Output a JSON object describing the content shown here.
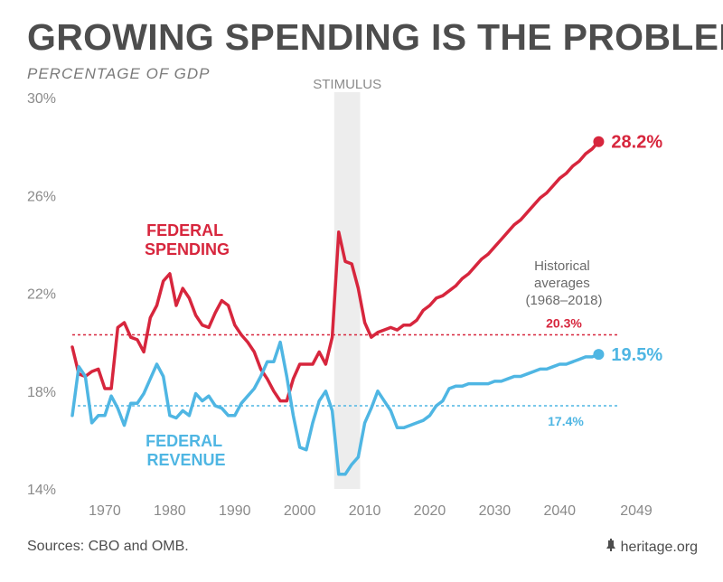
{
  "title": "GROWING SPENDING IS THE PROBLEM",
  "subtitle": "PERCENTAGE OF GDP",
  "footer": {
    "sources": "Sources: CBO and OMB.",
    "brand": "heritage.org"
  },
  "colors": {
    "spending": "#d7263d",
    "revenue": "#4fb6e3",
    "shade": "#ededed",
    "text": "#4d4d4d",
    "axis": "#8a8a8a"
  },
  "icons": {
    "brand_icon": "liberty-bell-icon"
  },
  "chart_data": {
    "type": "line",
    "title": "GROWING SPENDING IS THE PROBLEM",
    "ylabel": "PERCENTAGE OF GDP",
    "xlabel": "",
    "xlim": [
      1965,
      2049
    ],
    "ylim": [
      14,
      30
    ],
    "y_ticks": [
      14,
      18,
      22,
      26,
      30
    ],
    "y_tick_labels": [
      "14%",
      "18%",
      "22%",
      "26%",
      "30%"
    ],
    "x_ticks": [
      1970,
      1980,
      1990,
      2000,
      2010,
      2020,
      2030,
      2040,
      2049
    ],
    "x_tick_labels": [
      "1970",
      "1980",
      "1990",
      "2000",
      "2010",
      "2020",
      "2030",
      "2040",
      "2049"
    ],
    "grid": false,
    "shaded_region": {
      "label": "STIMULUS",
      "x_start": 2005.3,
      "x_end": 2009.3
    },
    "historical_averages": {
      "label": "Historical averages (1968–2018)",
      "label_lines": [
        "Historical",
        "averages",
        "(1968–2018)"
      ],
      "spending": {
        "value": 20.3,
        "label": "20.3%"
      },
      "revenue": {
        "value": 17.4,
        "label": "17.4%"
      }
    },
    "series": [
      {
        "name": "FEDERAL SPENDING",
        "label_lines": [
          "FEDERAL",
          "SPENDING"
        ],
        "end_label": "28.2%",
        "points": [
          [
            1965,
            19.8
          ],
          [
            1966,
            18.7
          ],
          [
            1967,
            18.6
          ],
          [
            1968,
            18.8
          ],
          [
            1969,
            18.9
          ],
          [
            1970,
            18.1
          ],
          [
            1971,
            18.1
          ],
          [
            1972,
            20.6
          ],
          [
            1973,
            20.8
          ],
          [
            1974,
            20.2
          ],
          [
            1975,
            20.1
          ],
          [
            1976,
            19.6
          ],
          [
            1977,
            21.0
          ],
          [
            1978,
            21.5
          ],
          [
            1979,
            22.5
          ],
          [
            1980,
            22.8
          ],
          [
            1981,
            21.5
          ],
          [
            1982,
            22.2
          ],
          [
            1983,
            21.8
          ],
          [
            1984,
            21.1
          ],
          [
            1985,
            20.7
          ],
          [
            1986,
            20.6
          ],
          [
            1987,
            21.2
          ],
          [
            1988,
            21.7
          ],
          [
            1989,
            21.5
          ],
          [
            1990,
            20.7
          ],
          [
            1991,
            20.3
          ],
          [
            1992,
            20.0
          ],
          [
            1993,
            19.6
          ],
          [
            1994,
            18.9
          ],
          [
            1995,
            18.5
          ],
          [
            1996,
            18.0
          ],
          [
            1997,
            17.6
          ],
          [
            1998,
            17.6
          ],
          [
            1999,
            18.5
          ],
          [
            2000,
            19.1
          ],
          [
            2001,
            19.1
          ],
          [
            2002,
            19.1
          ],
          [
            2003,
            19.6
          ],
          [
            2004,
            19.1
          ],
          [
            2005,
            20.2
          ],
          [
            2006,
            24.5
          ],
          [
            2007,
            23.3
          ],
          [
            2008,
            23.2
          ],
          [
            2009,
            22.2
          ],
          [
            2010,
            20.8
          ],
          [
            2011,
            20.2
          ],
          [
            2012,
            20.4
          ],
          [
            2013,
            20.5
          ],
          [
            2014,
            20.6
          ],
          [
            2015,
            20.5
          ],
          [
            2016,
            20.7
          ],
          [
            2017,
            20.7
          ],
          [
            2018,
            20.9
          ],
          [
            2019,
            21.3
          ],
          [
            2020,
            21.5
          ],
          [
            2021,
            21.8
          ],
          [
            2022,
            21.9
          ],
          [
            2023,
            22.1
          ],
          [
            2024,
            22.3
          ],
          [
            2025,
            22.6
          ],
          [
            2026,
            22.8
          ],
          [
            2027,
            23.1
          ],
          [
            2028,
            23.4
          ],
          [
            2029,
            23.6
          ],
          [
            2030,
            23.9
          ],
          [
            2031,
            24.2
          ],
          [
            2032,
            24.5
          ],
          [
            2033,
            24.8
          ],
          [
            2034,
            25.0
          ],
          [
            2035,
            25.3
          ],
          [
            2036,
            25.6
          ],
          [
            2037,
            25.9
          ],
          [
            2038,
            26.1
          ],
          [
            2039,
            26.4
          ],
          [
            2040,
            26.7
          ],
          [
            2041,
            26.9
          ],
          [
            2042,
            27.2
          ],
          [
            2043,
            27.4
          ],
          [
            2044,
            27.7
          ],
          [
            2045,
            27.9
          ],
          [
            2046,
            28.2
          ]
        ]
      },
      {
        "name": "FEDERAL REVENUE",
        "label_lines": [
          "FEDERAL",
          "REVENUE"
        ],
        "end_label": "19.5%",
        "points": [
          [
            1965,
            17.0
          ],
          [
            1966,
            19.0
          ],
          [
            1967,
            18.6
          ],
          [
            1968,
            16.7
          ],
          [
            1969,
            17.0
          ],
          [
            1970,
            17.0
          ],
          [
            1971,
            17.8
          ],
          [
            1972,
            17.3
          ],
          [
            1973,
            16.6
          ],
          [
            1974,
            17.5
          ],
          [
            1975,
            17.5
          ],
          [
            1976,
            17.9
          ],
          [
            1977,
            18.5
          ],
          [
            1978,
            19.1
          ],
          [
            1979,
            18.6
          ],
          [
            1980,
            17.0
          ],
          [
            1981,
            16.9
          ],
          [
            1982,
            17.2
          ],
          [
            1983,
            17.0
          ],
          [
            1984,
            17.9
          ],
          [
            1985,
            17.6
          ],
          [
            1986,
            17.8
          ],
          [
            1987,
            17.4
          ],
          [
            1988,
            17.3
          ],
          [
            1989,
            17.0
          ],
          [
            1990,
            17.0
          ],
          [
            1991,
            17.5
          ],
          [
            1992,
            17.8
          ],
          [
            1993,
            18.1
          ],
          [
            1994,
            18.6
          ],
          [
            1995,
            19.2
          ],
          [
            1996,
            19.2
          ],
          [
            1997,
            20.0
          ],
          [
            1998,
            18.6
          ],
          [
            1999,
            17.0
          ],
          [
            2000,
            15.7
          ],
          [
            2001,
            15.6
          ],
          [
            2002,
            16.7
          ],
          [
            2003,
            17.6
          ],
          [
            2004,
            18.0
          ],
          [
            2005,
            17.2
          ],
          [
            2006,
            14.6
          ],
          [
            2007,
            14.6
          ],
          [
            2008,
            15.0
          ],
          [
            2009,
            15.3
          ],
          [
            2010,
            16.7
          ],
          [
            2011,
            17.3
          ],
          [
            2012,
            18.0
          ],
          [
            2013,
            17.6
          ],
          [
            2014,
            17.2
          ],
          [
            2015,
            16.5
          ],
          [
            2016,
            16.5
          ],
          [
            2017,
            16.6
          ],
          [
            2018,
            16.7
          ],
          [
            2019,
            16.8
          ],
          [
            2020,
            17.0
          ],
          [
            2021,
            17.4
          ],
          [
            2022,
            17.6
          ],
          [
            2023,
            18.1
          ],
          [
            2024,
            18.2
          ],
          [
            2025,
            18.2
          ],
          [
            2026,
            18.3
          ],
          [
            2027,
            18.3
          ],
          [
            2028,
            18.3
          ],
          [
            2029,
            18.3
          ],
          [
            2030,
            18.4
          ],
          [
            2031,
            18.4
          ],
          [
            2032,
            18.5
          ],
          [
            2033,
            18.6
          ],
          [
            2034,
            18.6
          ],
          [
            2035,
            18.7
          ],
          [
            2036,
            18.8
          ],
          [
            2037,
            18.9
          ],
          [
            2038,
            18.9
          ],
          [
            2039,
            19.0
          ],
          [
            2040,
            19.1
          ],
          [
            2041,
            19.1
          ],
          [
            2042,
            19.2
          ],
          [
            2043,
            19.3
          ],
          [
            2044,
            19.4
          ],
          [
            2045,
            19.4
          ],
          [
            2046,
            19.5
          ]
        ]
      }
    ]
  }
}
